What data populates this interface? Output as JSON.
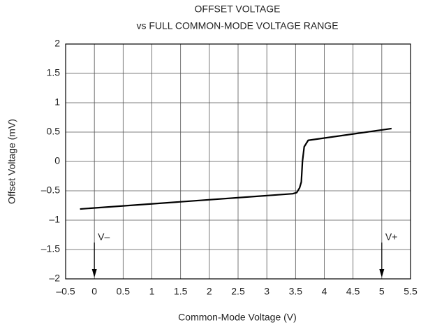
{
  "chart_data": {
    "type": "line",
    "title": [
      "OFFSET VOLTAGE",
      "vs FULL COMMON-MODE VOLTAGE RANGE"
    ],
    "xlabel": "Common-Mode Voltage (V)",
    "ylabel": "Offset Voltage (mV)",
    "x": [
      -0.25,
      3.45,
      3.52,
      3.57,
      3.6,
      3.62,
      3.65,
      3.72,
      5.17
    ],
    "values": [
      -0.81,
      -0.55,
      -0.53,
      -0.45,
      -0.35,
      0,
      0.25,
      0.36,
      0.56
    ],
    "color": "#000000",
    "xlim": [
      -0.5,
      5.5
    ],
    "xticks": [
      {
        "value": -0.5,
        "label": "–0.5"
      },
      0,
      0.5,
      1,
      1.5,
      2,
      2.5,
      3,
      3.5,
      4,
      4.5,
      5,
      5.5
    ],
    "ylim": [
      -2,
      2
    ],
    "yticks": [
      {
        "value": -2,
        "label": "–2"
      },
      {
        "value": -1.5,
        "label": "–1.5"
      },
      {
        "value": -1,
        "label": "–1"
      },
      {
        "value": -0.5,
        "label": "–0.5"
      },
      0,
      0.5,
      1,
      1.5,
      2
    ],
    "grid": true,
    "annotations": [
      {
        "text": "V–",
        "x": 0
      },
      {
        "text": "V+",
        "x": 5
      }
    ]
  }
}
